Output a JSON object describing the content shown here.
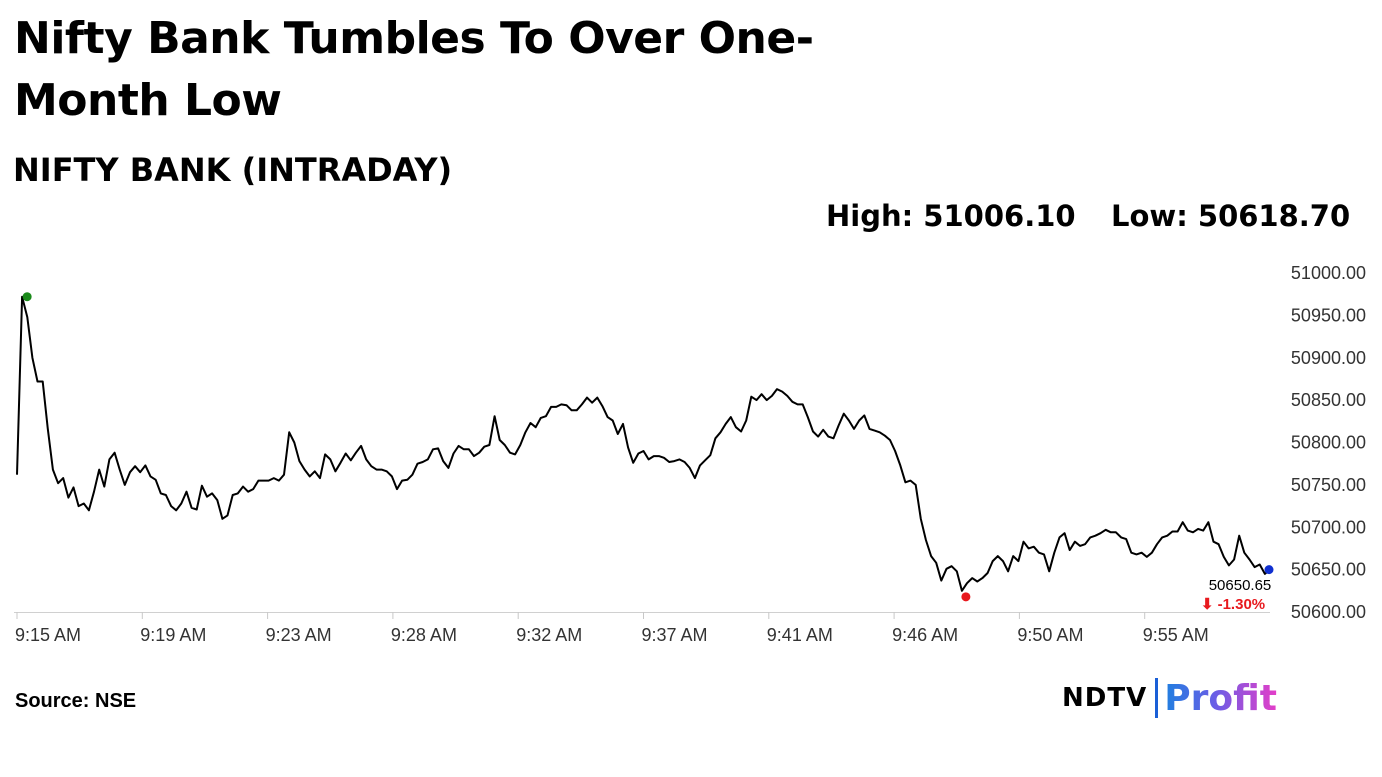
{
  "headline": "Nifty Bank Tumbles To Over One-Month Low",
  "subtitle": "NIFTY BANK (INTRADAY)",
  "stats": {
    "high": "High: 51006.10",
    "low": "Low: 50618.70"
  },
  "source": "Source: NSE",
  "brand": {
    "ndtv": "NDTV",
    "profit": "Profit"
  },
  "chart_data": {
    "type": "line",
    "x_tick_labels": [
      "9:15 AM",
      "9:19 AM",
      "9:23 AM",
      "9:28 AM",
      "9:32 AM",
      "9:37 AM",
      "9:41 AM",
      "9:46 AM",
      "9:50 AM",
      "9:55 AM"
    ],
    "y_tick_labels": [
      "51000.00",
      "50950.00",
      "50900.00",
      "50850.00",
      "50800.00",
      "50750.00",
      "50700.00",
      "50650.00",
      "50600.00"
    ],
    "ylim": [
      50600,
      51000
    ],
    "y_ticks": [
      51000,
      50950,
      50900,
      50850,
      50800,
      50750,
      50700,
      50650,
      50600
    ],
    "y_axis_side": "right",
    "grid": false,
    "last_value_label": "50650.65",
    "change_label": "⬇ -1.30%",
    "colors": {
      "line": "#000000",
      "high_marker": "#1a8a1a",
      "low_marker": "#e8191e",
      "last_marker": "#1030d0",
      "change": "#e8191e"
    },
    "series": [
      {
        "values": [
          50762,
          50972,
          50948,
          50900,
          50872,
          50872,
          50816,
          50768,
          50752,
          50758,
          50735,
          50747,
          50725,
          50728,
          50720,
          50742,
          50768,
          50748,
          50780,
          50788,
          50768,
          50750,
          50765,
          50772,
          50765,
          50773,
          50760,
          50756,
          50740,
          50738,
          50725,
          50720,
          50728,
          50742,
          50723,
          50721,
          50749,
          50736,
          50740,
          50732,
          50710,
          50714,
          50738,
          50740,
          50748,
          50742,
          50745,
          50755,
          50755,
          50755,
          50758,
          50755,
          50762,
          50812,
          50800,
          50778,
          50768,
          50760,
          50766,
          50758,
          50786,
          50780,
          50766,
          50776,
          50787,
          50779,
          50788,
          50796,
          50780,
          50772,
          50768,
          50768,
          50766,
          50760,
          50745,
          50755,
          50756,
          50762,
          50775,
          50777,
          50780,
          50792,
          50793,
          50778,
          50770,
          50787,
          50796,
          50792,
          50792,
          50784,
          50788,
          50795,
          50797,
          50831,
          50803,
          50797,
          50788,
          50786,
          50797,
          50812,
          50823,
          50818,
          50829,
          50831,
          50842,
          50842,
          50845,
          50844,
          50838,
          50838,
          50845,
          50853,
          50847,
          50853,
          50843,
          50830,
          50826,
          50810,
          50822,
          50794,
          50776,
          50787,
          50790,
          50780,
          50784,
          50784,
          50782,
          50777,
          50778,
          50780,
          50777,
          50770,
          50758,
          50773,
          50779,
          50785,
          50805,
          50812,
          50822,
          50830,
          50818,
          50813,
          50826,
          50854,
          50850,
          50857,
          50850,
          50855,
          50863,
          50860,
          50855,
          50848,
          50845,
          50845,
          50830,
          50813,
          50807,
          50815,
          50807,
          50805,
          50820,
          50834,
          50826,
          50816,
          50826,
          50832,
          50816,
          50814,
          50812,
          50808,
          50803,
          50790,
          50773,
          50753,
          50755,
          50750,
          50710,
          50685,
          50666,
          50658,
          50637,
          50651,
          50654,
          50648,
          50625,
          50634,
          50640,
          50636,
          50640,
          50646,
          50660,
          50666,
          50660,
          50648,
          50666,
          50660,
          50683,
          50675,
          50677,
          50670,
          50668,
          50648,
          50670,
          50688,
          50693,
          50673,
          50683,
          50678,
          50680,
          50688,
          50690,
          50693,
          50697,
          50694,
          50694,
          50688,
          50686,
          50670,
          50668,
          50670,
          50665,
          50670,
          50680,
          50688,
          50690,
          50695,
          50695,
          50706,
          50696,
          50694,
          50698,
          50696,
          50706,
          50683,
          50680,
          50665,
          50655,
          50662,
          50690,
          50670,
          50662,
          50653,
          50656,
          50645,
          50650
        ]
      }
    ],
    "high_point_index": 1,
    "low_point_index": 184
  }
}
